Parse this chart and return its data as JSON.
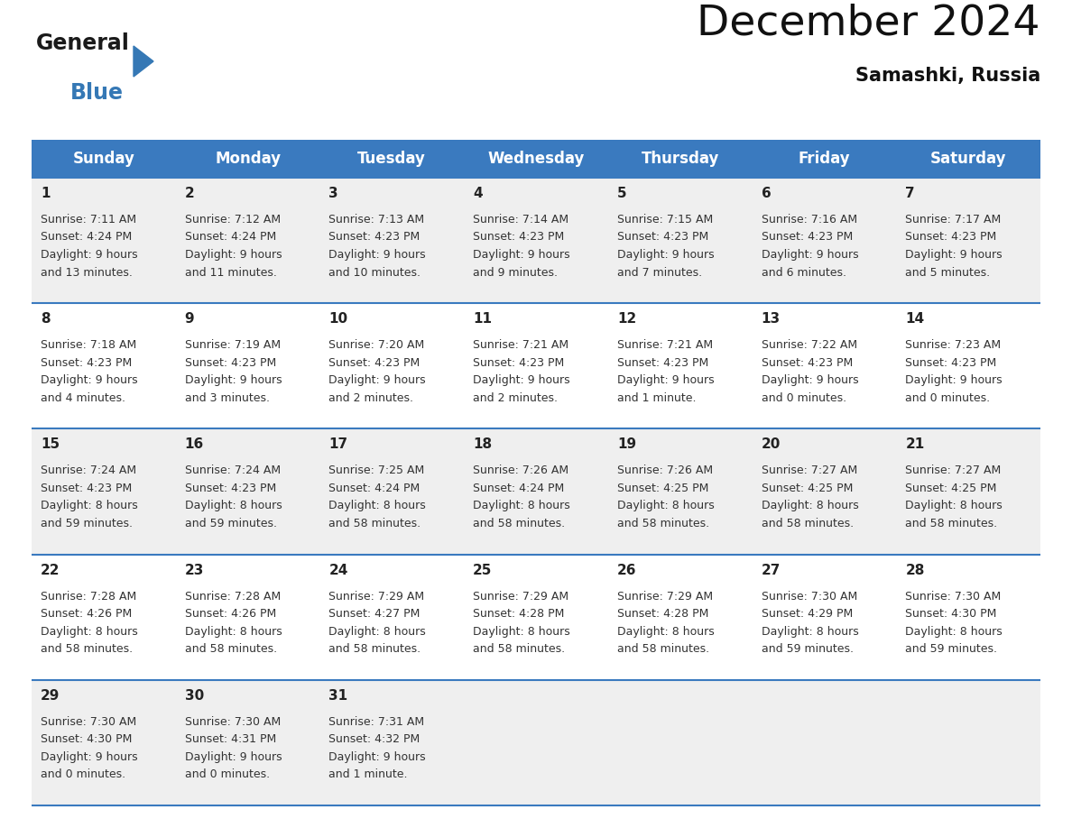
{
  "title": "December 2024",
  "subtitle": "Samashki, Russia",
  "header_color": "#3a7abf",
  "header_text_color": "#ffffff",
  "bg_color": "#ffffff",
  "row_bg": [
    "#efefef",
    "#ffffff",
    "#efefef",
    "#ffffff",
    "#efefef"
  ],
  "days_of_week": [
    "Sunday",
    "Monday",
    "Tuesday",
    "Wednesday",
    "Thursday",
    "Friday",
    "Saturday"
  ],
  "separator_color": "#3a7abf",
  "logo_general_color": "#1a1a1a",
  "logo_blue_color": "#3578b5",
  "calendar": [
    [
      {
        "day": 1,
        "sunrise": "7:11 AM",
        "sunset": "4:24 PM",
        "daylight": "9 hours\nand 13 minutes."
      },
      {
        "day": 2,
        "sunrise": "7:12 AM",
        "sunset": "4:24 PM",
        "daylight": "9 hours\nand 11 minutes."
      },
      {
        "day": 3,
        "sunrise": "7:13 AM",
        "sunset": "4:23 PM",
        "daylight": "9 hours\nand 10 minutes."
      },
      {
        "day": 4,
        "sunrise": "7:14 AM",
        "sunset": "4:23 PM",
        "daylight": "9 hours\nand 9 minutes."
      },
      {
        "day": 5,
        "sunrise": "7:15 AM",
        "sunset": "4:23 PM",
        "daylight": "9 hours\nand 7 minutes."
      },
      {
        "day": 6,
        "sunrise": "7:16 AM",
        "sunset": "4:23 PM",
        "daylight": "9 hours\nand 6 minutes."
      },
      {
        "day": 7,
        "sunrise": "7:17 AM",
        "sunset": "4:23 PM",
        "daylight": "9 hours\nand 5 minutes."
      }
    ],
    [
      {
        "day": 8,
        "sunrise": "7:18 AM",
        "sunset": "4:23 PM",
        "daylight": "9 hours\nand 4 minutes."
      },
      {
        "day": 9,
        "sunrise": "7:19 AM",
        "sunset": "4:23 PM",
        "daylight": "9 hours\nand 3 minutes."
      },
      {
        "day": 10,
        "sunrise": "7:20 AM",
        "sunset": "4:23 PM",
        "daylight": "9 hours\nand 2 minutes."
      },
      {
        "day": 11,
        "sunrise": "7:21 AM",
        "sunset": "4:23 PM",
        "daylight": "9 hours\nand 2 minutes."
      },
      {
        "day": 12,
        "sunrise": "7:21 AM",
        "sunset": "4:23 PM",
        "daylight": "9 hours\nand 1 minute."
      },
      {
        "day": 13,
        "sunrise": "7:22 AM",
        "sunset": "4:23 PM",
        "daylight": "9 hours\nand 0 minutes."
      },
      {
        "day": 14,
        "sunrise": "7:23 AM",
        "sunset": "4:23 PM",
        "daylight": "9 hours\nand 0 minutes."
      }
    ],
    [
      {
        "day": 15,
        "sunrise": "7:24 AM",
        "sunset": "4:23 PM",
        "daylight": "8 hours\nand 59 minutes."
      },
      {
        "day": 16,
        "sunrise": "7:24 AM",
        "sunset": "4:23 PM",
        "daylight": "8 hours\nand 59 minutes."
      },
      {
        "day": 17,
        "sunrise": "7:25 AM",
        "sunset": "4:24 PM",
        "daylight": "8 hours\nand 58 minutes."
      },
      {
        "day": 18,
        "sunrise": "7:26 AM",
        "sunset": "4:24 PM",
        "daylight": "8 hours\nand 58 minutes."
      },
      {
        "day": 19,
        "sunrise": "7:26 AM",
        "sunset": "4:25 PM",
        "daylight": "8 hours\nand 58 minutes."
      },
      {
        "day": 20,
        "sunrise": "7:27 AM",
        "sunset": "4:25 PM",
        "daylight": "8 hours\nand 58 minutes."
      },
      {
        "day": 21,
        "sunrise": "7:27 AM",
        "sunset": "4:25 PM",
        "daylight": "8 hours\nand 58 minutes."
      }
    ],
    [
      {
        "day": 22,
        "sunrise": "7:28 AM",
        "sunset": "4:26 PM",
        "daylight": "8 hours\nand 58 minutes."
      },
      {
        "day": 23,
        "sunrise": "7:28 AM",
        "sunset": "4:26 PM",
        "daylight": "8 hours\nand 58 minutes."
      },
      {
        "day": 24,
        "sunrise": "7:29 AM",
        "sunset": "4:27 PM",
        "daylight": "8 hours\nand 58 minutes."
      },
      {
        "day": 25,
        "sunrise": "7:29 AM",
        "sunset": "4:28 PM",
        "daylight": "8 hours\nand 58 minutes."
      },
      {
        "day": 26,
        "sunrise": "7:29 AM",
        "sunset": "4:28 PM",
        "daylight": "8 hours\nand 58 minutes."
      },
      {
        "day": 27,
        "sunrise": "7:30 AM",
        "sunset": "4:29 PM",
        "daylight": "8 hours\nand 59 minutes."
      },
      {
        "day": 28,
        "sunrise": "7:30 AM",
        "sunset": "4:30 PM",
        "daylight": "8 hours\nand 59 minutes."
      }
    ],
    [
      {
        "day": 29,
        "sunrise": "7:30 AM",
        "sunset": "4:30 PM",
        "daylight": "9 hours\nand 0 minutes."
      },
      {
        "day": 30,
        "sunrise": "7:30 AM",
        "sunset": "4:31 PM",
        "daylight": "9 hours\nand 0 minutes."
      },
      {
        "day": 31,
        "sunrise": "7:31 AM",
        "sunset": "4:32 PM",
        "daylight": "9 hours\nand 1 minute."
      },
      null,
      null,
      null,
      null
    ]
  ],
  "figsize": [
    11.88,
    9.18
  ],
  "dpi": 100
}
